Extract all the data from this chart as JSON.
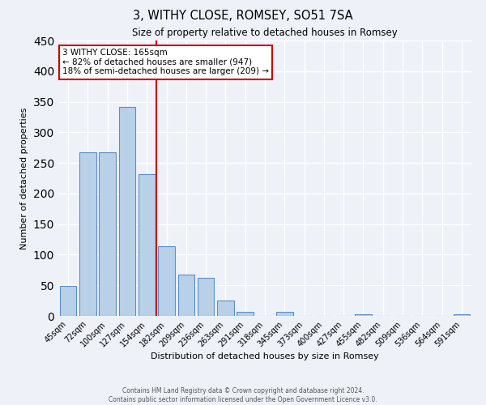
{
  "title": "3, WITHY CLOSE, ROMSEY, SO51 7SA",
  "subtitle": "Size of property relative to detached houses in Romsey",
  "xlabel": "Distribution of detached houses by size in Romsey",
  "ylabel": "Number of detached properties",
  "bar_labels": [
    "45sqm",
    "72sqm",
    "100sqm",
    "127sqm",
    "154sqm",
    "182sqm",
    "209sqm",
    "236sqm",
    "263sqm",
    "291sqm",
    "318sqm",
    "345sqm",
    "373sqm",
    "400sqm",
    "427sqm",
    "455sqm",
    "482sqm",
    "509sqm",
    "536sqm",
    "564sqm",
    "591sqm"
  ],
  "bar_heights": [
    49,
    267,
    268,
    341,
    231,
    114,
    68,
    62,
    25,
    6,
    0,
    6,
    0,
    0,
    0,
    3,
    0,
    0,
    0,
    0,
    3
  ],
  "bar_color": "#b8d0e8",
  "bar_edge_color": "#5b8fc9",
  "background_color": "#eef2f8",
  "grid_color": "#ffffff",
  "vline_x": 4.5,
  "vline_color": "#cc0000",
  "annotation_text": "3 WITHY CLOSE: 165sqm\n← 82% of detached houses are smaller (947)\n18% of semi-detached houses are larger (209) →",
  "annotation_box_color": "#cc0000",
  "ylim": [
    0,
    450
  ],
  "footer_line1": "Contains HM Land Registry data © Crown copyright and database right 2024.",
  "footer_line2": "Contains public sector information licensed under the Open Government Licence v3.0."
}
